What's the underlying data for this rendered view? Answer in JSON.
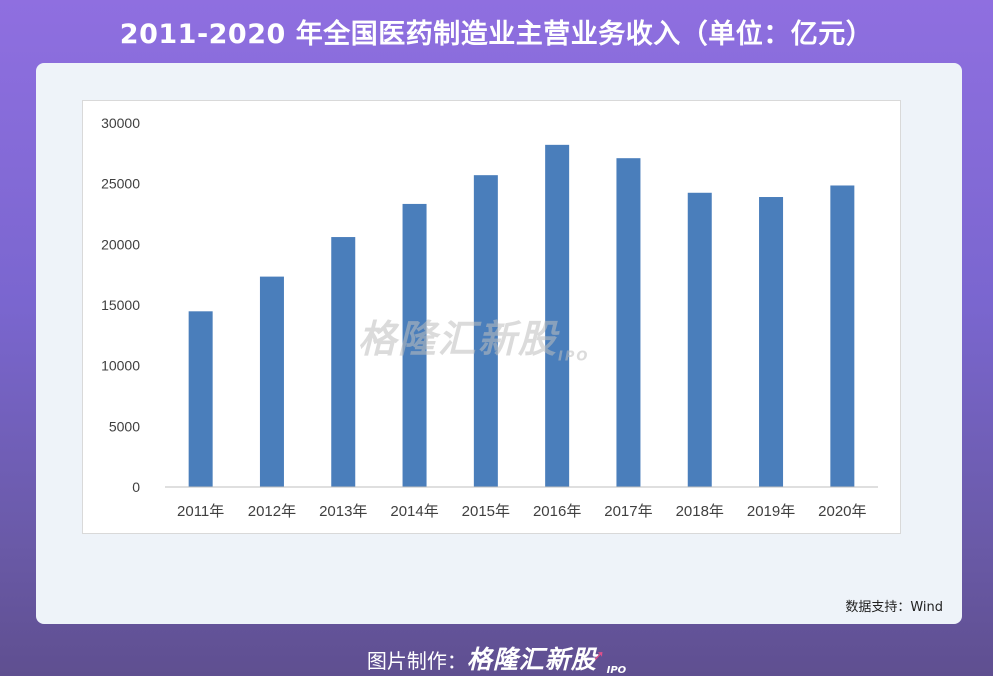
{
  "title": "2011-2020 年全国医药制造业主营业务收入（单位：亿元）",
  "watermark": {
    "brand": "格隆汇新股",
    "ipo": "IPO"
  },
  "source_text": "数据支持：Wind",
  "credit": {
    "label": "图片制作：",
    "brand": "格隆汇新股",
    "ipo": "IPO"
  },
  "colors": {
    "bar": "#4a7ebb",
    "background_top": "#8f6fe0",
    "card": "#eef3f9"
  },
  "chart_data": {
    "type": "bar",
    "categories": [
      "2011年",
      "2012年",
      "2013年",
      "2014年",
      "2015年",
      "2016年",
      "2017年",
      "2018年",
      "2019年",
      "2020年"
    ],
    "values": [
      14480,
      17340,
      20600,
      23330,
      25700,
      28200,
      27100,
      24250,
      23900,
      24850
    ],
    "yticks": [
      "0",
      "5000",
      "10000",
      "15000",
      "20000",
      "25000",
      "30000"
    ],
    "ylim": [
      0,
      30000
    ],
    "grid": false,
    "legend": "none"
  }
}
